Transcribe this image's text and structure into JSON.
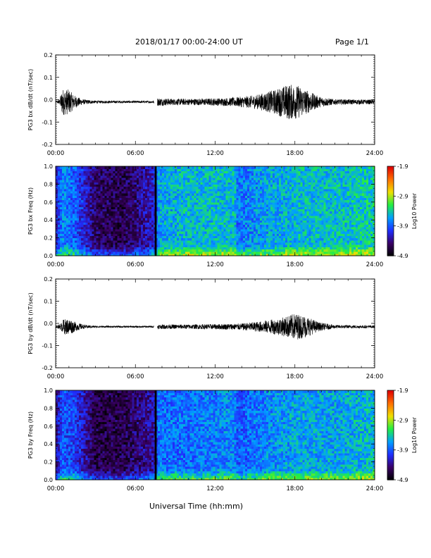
{
  "header": {
    "date_range": "2018/01/17  00:00-24:00 UT",
    "page_label": "Page 1/1"
  },
  "xlabel": "Universal Time (hh:mm)",
  "colors": {
    "trace": "#000000",
    "colorbar": [
      "#000000",
      "#3a0066",
      "#1f2fff",
      "#00a0ff",
      "#22ee44",
      "#f0e000",
      "#ff7000",
      "#e00000"
    ]
  },
  "chart_data": [
    {
      "type": "line",
      "ylabel": "PG3 bx dB/dt (nT/sec)",
      "x_ticks": [
        "00:00",
        "06:00",
        "12:00",
        "18:00",
        "24:00"
      ],
      "xlim": [
        0,
        24
      ],
      "ylim": [
        -0.2,
        0.2
      ],
      "y_ticks": [
        "-0.2",
        "-0.1",
        "0.0",
        "0.1",
        "0.2"
      ],
      "gaps": [
        [
          7.4,
          7.65
        ]
      ],
      "series": [
        {
          "baseline": -0.01,
          "envelope": [
            [
              0,
              0.002
            ],
            [
              0.3,
              0.012
            ],
            [
              0.5,
              0.06
            ],
            [
              1.0,
              0.055
            ],
            [
              1.4,
              0.03
            ],
            [
              2.0,
              0.012
            ],
            [
              3.0,
              0.006
            ],
            [
              6.0,
              0.005
            ],
            [
              7.3,
              0.005
            ],
            [
              7.7,
              0.018
            ],
            [
              9.0,
              0.014
            ],
            [
              11.0,
              0.015
            ],
            [
              13.0,
              0.018
            ],
            [
              15.0,
              0.03
            ],
            [
              16.5,
              0.055
            ],
            [
              17.5,
              0.08
            ],
            [
              18.2,
              0.075
            ],
            [
              19.0,
              0.05
            ],
            [
              19.8,
              0.025
            ],
            [
              21.0,
              0.012
            ],
            [
              24.0,
              0.01
            ]
          ]
        }
      ]
    },
    {
      "type": "heatmap",
      "ylabel": "PG3 bx Freq (Hz)",
      "x_ticks": [
        "00:00",
        "06:00",
        "12:00",
        "18:00",
        "24:00"
      ],
      "xlim": [
        0,
        24
      ],
      "ylim": [
        0.0,
        1.0
      ],
      "y_ticks": [
        "0.0",
        "0.2",
        "0.4",
        "0.6",
        "0.8",
        "1.0"
      ],
      "colorbar": {
        "label": "Log10 Power",
        "ticks": [
          "-1.9",
          "-2.9",
          "-3.9",
          "-4.9"
        ],
        "range": [
          -4.9,
          -1.9
        ]
      },
      "data_gap_hours": [
        7.45,
        7.6
      ],
      "level_profile": [
        [
          0.0,
          -4.3
        ],
        [
          0.5,
          -3.7
        ],
        [
          1.5,
          -3.9
        ],
        [
          3.0,
          -4.5
        ],
        [
          5.0,
          -4.6
        ],
        [
          7.4,
          -4.2
        ],
        [
          7.7,
          -3.6
        ],
        [
          10.0,
          -3.5
        ],
        [
          13.5,
          -3.5
        ],
        [
          13.6,
          -3.8
        ],
        [
          16.0,
          -3.6
        ],
        [
          18.0,
          -3.5
        ],
        [
          21.0,
          -3.5
        ],
        [
          24.0,
          -3.4
        ]
      ]
    },
    {
      "type": "line",
      "ylabel": "PG3 by dB/dt (nT/sec)",
      "x_ticks": [
        "00:00",
        "06:00",
        "12:00",
        "18:00",
        "24:00"
      ],
      "xlim": [
        0,
        24
      ],
      "ylim": [
        -0.2,
        0.2
      ],
      "y_ticks": [
        "-0.2",
        "-0.1",
        "0.0",
        "0.1",
        "0.2"
      ],
      "gaps": [
        [
          7.4,
          7.65
        ]
      ],
      "series": [
        {
          "baseline": -0.015,
          "envelope": [
            [
              0,
              0.003
            ],
            [
              0.4,
              0.015
            ],
            [
              0.6,
              0.035
            ],
            [
              1.1,
              0.035
            ],
            [
              1.5,
              0.02
            ],
            [
              2.2,
              0.008
            ],
            [
              3.0,
              0.004
            ],
            [
              7.3,
              0.004
            ],
            [
              7.7,
              0.01
            ],
            [
              10.0,
              0.01
            ],
            [
              12.0,
              0.012
            ],
            [
              14.0,
              0.015
            ],
            [
              15.5,
              0.025
            ],
            [
              17.0,
              0.04
            ],
            [
              18.0,
              0.06
            ],
            [
              18.8,
              0.05
            ],
            [
              19.8,
              0.02
            ],
            [
              21.0,
              0.008
            ],
            [
              24.0,
              0.006
            ]
          ]
        }
      ]
    },
    {
      "type": "heatmap",
      "ylabel": "PG3 by Freq (Hz)",
      "x_ticks": [
        "00:00",
        "06:00",
        "12:00",
        "18:00",
        "24:00"
      ],
      "xlim": [
        0,
        24
      ],
      "ylim": [
        0.0,
        1.0
      ],
      "y_ticks": [
        "0.0",
        "0.2",
        "0.4",
        "0.6",
        "0.8",
        "1.0"
      ],
      "colorbar": {
        "label": "Log10 Power",
        "ticks": [
          "-1.9",
          "-2.9",
          "-3.9",
          "-4.9"
        ],
        "range": [
          -4.9,
          -1.9
        ]
      },
      "data_gap_hours": [
        7.45,
        7.6
      ],
      "level_profile": [
        [
          0.0,
          -4.4
        ],
        [
          0.5,
          -3.9
        ],
        [
          1.5,
          -4.0
        ],
        [
          3.0,
          -4.6
        ],
        [
          5.0,
          -4.6
        ],
        [
          7.4,
          -4.3
        ],
        [
          7.7,
          -3.8
        ],
        [
          10.0,
          -3.8
        ],
        [
          13.5,
          -3.7
        ],
        [
          13.6,
          -3.9
        ],
        [
          16.0,
          -3.7
        ],
        [
          18.0,
          -3.6
        ],
        [
          21.0,
          -3.6
        ],
        [
          24.0,
          -3.5
        ]
      ]
    }
  ]
}
